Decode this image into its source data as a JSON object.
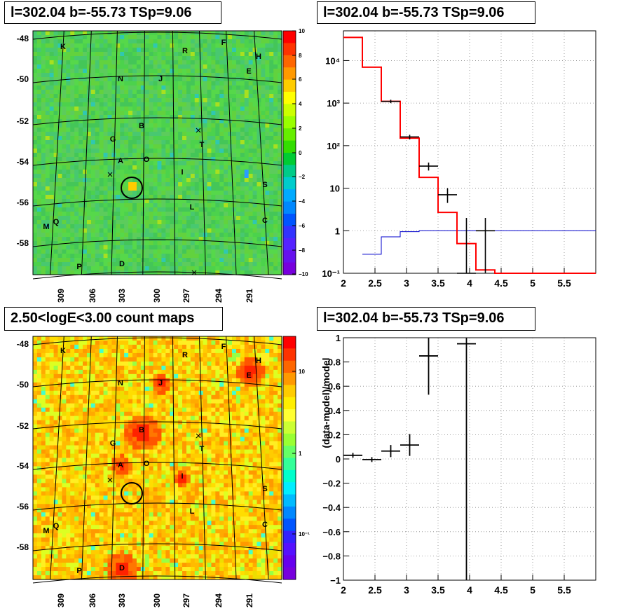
{
  "panels": {
    "sky_residual": {
      "title": "l=302.04 b=-55.73 TSp=9.06"
    },
    "spectrum": {
      "title": "l=302.04 b=-55.73 TSp=9.06"
    },
    "count_map": {
      "title": "2.50<logE<3.00 count maps"
    },
    "ratio": {
      "title": "l=302.04 b=-55.73 TSp=9.06"
    }
  },
  "colors": {
    "model_line": "#ff0000",
    "background_line": "#0000cc",
    "data": "#000000"
  },
  "sky_axes": {
    "lat_ticks": [
      "-48",
      "-50",
      "-52",
      "-54",
      "-56",
      "-58"
    ],
    "lon_ticks": [
      "309",
      "306",
      "303",
      "300",
      "297",
      "294",
      "291"
    ]
  },
  "source_labels": [
    "K",
    "R",
    "F",
    "H",
    "E",
    "N",
    "J",
    "B",
    "G",
    "T",
    "A",
    "O",
    "I",
    "S",
    "L",
    "M",
    "Q",
    "C",
    "P",
    "D"
  ],
  "colorbar_residual": {
    "ticks": [
      "10",
      "8",
      "6",
      "4",
      "2",
      "0",
      "−2",
      "−4",
      "−6",
      "−8",
      "−10"
    ]
  },
  "colorbar_counts": {
    "ticks": [
      "10",
      "1",
      "10⁻¹"
    ]
  },
  "chart_data": [
    {
      "type": "heatmap",
      "title": "l=302.04 b=-55.73 TSp=9.06",
      "xlabel": "",
      "ylabel": "",
      "x_ticks": [
        309,
        306,
        303,
        300,
        297,
        294,
        291
      ],
      "y_ticks": [
        -48,
        -50,
        -52,
        -54,
        -56,
        -58
      ],
      "zlim": [
        -10,
        10
      ],
      "target": {
        "l": 302.04,
        "b": -55.73
      }
    },
    {
      "type": "line",
      "title": "l=302.04 b=-55.73 TSp=9.06",
      "xlabel": "",
      "ylabel": "",
      "yscale": "log",
      "xlim": [
        2,
        6
      ],
      "ylim": [
        0.1,
        50000
      ],
      "x_ticks": [
        "2",
        "2.5",
        "3",
        "3.5",
        "4",
        "4.5",
        "5",
        "5.5"
      ],
      "y_ticks": [
        "10⁻¹",
        "1",
        "10",
        "10²",
        "10³",
        "10⁴"
      ],
      "series": [
        {
          "kind": "step",
          "edges": [
            2.0,
            2.3,
            2.6,
            2.9,
            3.2,
            3.5,
            3.8,
            4.1,
            4.4,
            6.0
          ],
          "values": [
            35000,
            7000,
            1100,
            150,
            18,
            2.7,
            0.5,
            0.12,
            0.1
          ]
        },
        {
          "kind": "step",
          "edges": [
            2.3,
            2.6,
            2.9,
            3.2,
            6.0
          ],
          "values": [
            0.28,
            0.72,
            0.95,
            1.0
          ]
        },
        {
          "kind": "points",
          "x": [
            2.75,
            3.05,
            3.35,
            3.65,
            3.95,
            4.25
          ],
          "y": [
            1100,
            160,
            33,
            7,
            0.1,
            1
          ],
          "xerr": 0.15,
          "ylo": [
            1000,
            140,
            26,
            4.5,
            0.1,
            0.1
          ],
          "yhi": [
            1200,
            180,
            40,
            10,
            2,
            2
          ]
        }
      ]
    },
    {
      "type": "heatmap",
      "title": "2.50<logE<3.00 count maps",
      "xlabel": "",
      "ylabel": "",
      "x_ticks": [
        309,
        306,
        303,
        300,
        297,
        294,
        291
      ],
      "y_ticks": [
        -48,
        -50,
        -52,
        -54,
        -56,
        -58
      ],
      "zscale": "log",
      "z_ticks": [
        "10",
        "1",
        "10⁻¹"
      ]
    },
    {
      "type": "scatter",
      "title": "l=302.04 b=-55.73 TSp=9.06",
      "xlabel": "",
      "ylabel": "(data-model)/model",
      "xlim": [
        2,
        6
      ],
      "ylim": [
        -1,
        1
      ],
      "x_ticks": [
        "2",
        "2.5",
        "3",
        "3.5",
        "4",
        "4.5",
        "5",
        "5.5"
      ],
      "y_ticks": [
        "1",
        "0.8",
        "0.6",
        "0.4",
        "0.2",
        "0",
        "−0.2",
        "−0.4",
        "−0.6",
        "−0.8",
        "−1"
      ],
      "x": [
        2.15,
        2.45,
        2.75,
        3.05,
        3.35,
        3.95
      ],
      "y": [
        0.03,
        -0.005,
        0.065,
        0.115,
        0.85,
        0.95
      ],
      "xerr": 0.15,
      "yerr": [
        0.02,
        0.02,
        0.05,
        0.09,
        0.32,
        1.95
      ]
    }
  ]
}
